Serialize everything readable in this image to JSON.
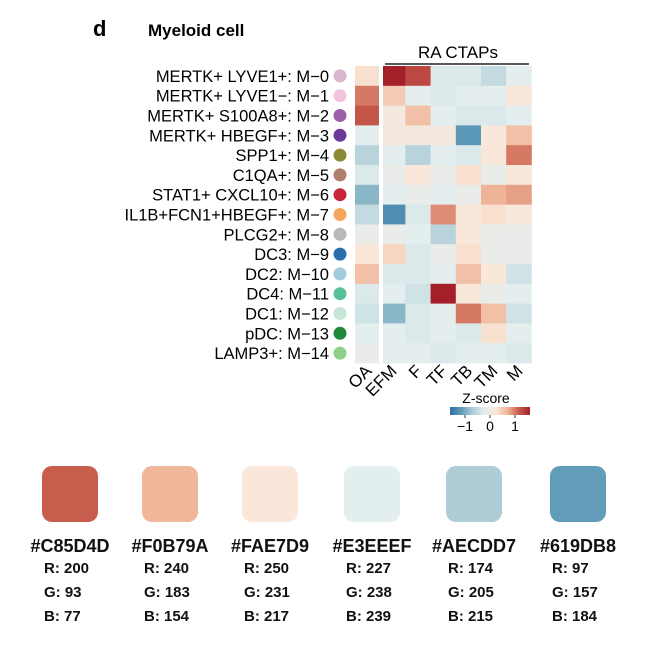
{
  "chart_data": {
    "type": "heatmap",
    "panel_letter": "d",
    "title": "Myeloid cell",
    "group_label": "RA CTAPs",
    "rows": [
      {
        "label": "MERTK+ LYVE1+: M−0",
        "dot_color": "#d9b5cf"
      },
      {
        "label": "MERTK+ LYVE1−: M−1",
        "dot_color": "#f0c4da"
      },
      {
        "label": "MERTK+ S100A8+: M−2",
        "dot_color": "#9c5fa8"
      },
      {
        "label": "MERTK+ HBEGF+: M−3",
        "dot_color": "#6b3a96"
      },
      {
        "label": "SPP1+: M−4",
        "dot_color": "#8c8a35"
      },
      {
        "label": "C1QA+: M−5",
        "dot_color": "#b07e6f"
      },
      {
        "label": "STAT1+ CXCL10+: M−6",
        "dot_color": "#c8243a"
      },
      {
        "label": "IL1B+FCN1+HBEGF+: M−7",
        "dot_color": "#f4a55c"
      },
      {
        "label": "PLCG2+: M−8",
        "dot_color": "#b8b8b8"
      },
      {
        "label": "DC3: M−9",
        "dot_color": "#2a6fab"
      },
      {
        "label": "DC2: M−10",
        "dot_color": "#a3cbdc"
      },
      {
        "label": "DC4: M−11",
        "dot_color": "#59c19a"
      },
      {
        "label": "DC1: M−12",
        "dot_color": "#c7e6d8"
      },
      {
        "label": "pDC: M−13",
        "dot_color": "#1e8a3c"
      },
      {
        "label": "LAMP3+: M−14",
        "dot_color": "#8ed08c"
      }
    ],
    "columns": [
      "OA",
      "EFM",
      "F",
      "TF",
      "TB",
      "TM",
      "M"
    ],
    "values": [
      [
        0.3,
        1.6,
        1.3,
        -0.3,
        -0.3,
        -0.5,
        -0.2
      ],
      [
        1.0,
        0.5,
        -0.2,
        -0.3,
        -0.2,
        -0.2,
        0.2
      ],
      [
        1.2,
        0.1,
        0.6,
        -0.2,
        -0.3,
        -0.3,
        -0.2
      ],
      [
        -0.2,
        0.1,
        0.1,
        0.1,
        -1.2,
        0.2,
        0.6
      ],
      [
        -0.6,
        -0.2,
        -0.6,
        -0.2,
        -0.3,
        0.2,
        1.0
      ],
      [
        -0.3,
        -0.1,
        0.2,
        -0.1,
        0.3,
        -0.1,
        0.2
      ],
      [
        -0.9,
        -0.2,
        -0.1,
        -0.2,
        -0.1,
        0.7,
        0.8
      ],
      [
        -0.5,
        -1.3,
        -0.3,
        0.9,
        0.2,
        0.3,
        0.2
      ],
      [
        -0.1,
        -0.1,
        -0.2,
        -0.6,
        0.2,
        -0.1,
        -0.1
      ],
      [
        0.2,
        0.4,
        -0.3,
        -0.1,
        0.3,
        -0.1,
        -0.1
      ],
      [
        0.6,
        -0.3,
        -0.3,
        -0.2,
        0.6,
        0.2,
        -0.4
      ],
      [
        -0.3,
        -0.2,
        -0.4,
        1.7,
        0.2,
        -0.1,
        -0.2
      ],
      [
        -0.4,
        -0.9,
        -0.3,
        -0.2,
        1.0,
        0.6,
        -0.4
      ],
      [
        -0.2,
        -0.2,
        -0.3,
        -0.2,
        -0.3,
        0.3,
        -0.2
      ],
      [
        -0.1,
        -0.2,
        -0.2,
        -0.3,
        -0.2,
        -0.2,
        -0.3
      ]
    ],
    "legend": {
      "title": "Z-score",
      "ticks": [
        {
          "label": "−1",
          "value": -1
        },
        {
          "label": "0",
          "value": 0
        },
        {
          "label": "1",
          "value": 1
        }
      ],
      "colors": [
        "#2f6fa8",
        "#619db8",
        "#aecdd7",
        "#e3eeef",
        "#fae7d9",
        "#f0b79a",
        "#c85d4d",
        "#a51f2a"
      ],
      "range": [
        -1.6,
        1.6
      ]
    }
  },
  "palette": [
    {
      "hex": "#C85D4D",
      "r": "R: 200",
      "g": "G: 93",
      "b": "B: 77"
    },
    {
      "hex": "#F0B79A",
      "r": "R: 240",
      "g": "G: 183",
      "b": "B: 154"
    },
    {
      "hex": "#FAE7D9",
      "r": "R: 250",
      "g": "G: 231",
      "b": "B: 217"
    },
    {
      "hex": "#E3EEEF",
      "r": "R: 227",
      "g": "G: 238",
      "b": "B: 239"
    },
    {
      "hex": "#AECDD7",
      "r": "R: 174",
      "g": "G: 205",
      "b": "B: 215"
    },
    {
      "hex": "#619DB8",
      "r": "R: 97",
      "g": "G: 157",
      "b": "B: 184"
    }
  ]
}
